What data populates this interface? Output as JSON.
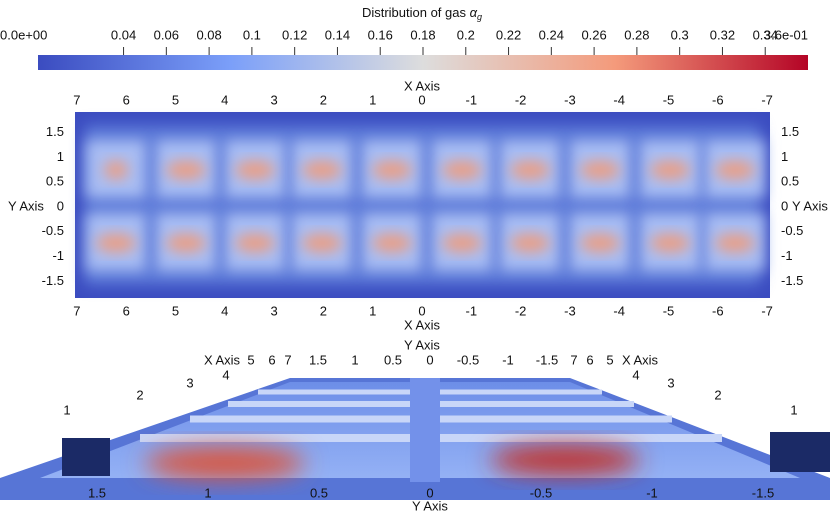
{
  "colorbar": {
    "title": "Distribution of gas",
    "symbol": "α",
    "subscript": "g",
    "range": [
      0,
      0.36
    ],
    "ticks": [
      {
        "value": 0,
        "label": "0.0e+00"
      },
      0.04,
      0.06,
      0.08,
      0.1,
      0.12,
      0.14,
      0.16,
      0.18,
      0.2,
      0.22,
      0.24,
      0.26,
      0.28,
      0.3,
      0.32,
      0.34,
      {
        "value": 0.36,
        "label": "3.6e-01"
      }
    ]
  },
  "top_view": {
    "x_axis_title": "X Axis",
    "y_axis_title": "Y Axis",
    "x_labels": [
      7,
      6,
      5,
      4,
      3,
      2,
      1,
      0,
      -1,
      -2,
      -3,
      -4,
      -5,
      -6,
      -7
    ],
    "y_labels": [
      1.5,
      1,
      0.5,
      0,
      -0.5,
      -1,
      -1.5
    ]
  },
  "perspective_view": {
    "y_axis_title": "Y Axis",
    "top_labels": [
      "X Axis",
      "5",
      "6",
      "7",
      "1.5",
      "1",
      "0.5",
      "0",
      "-0.5",
      "-1",
      "-1.5",
      "7",
      "6",
      "5",
      "X Axis"
    ],
    "side_labels": [
      "4",
      "3",
      "2",
      "1",
      "4",
      "3",
      "2",
      "1"
    ],
    "bottom_labels": [
      1.5,
      1,
      0.5,
      0,
      -0.5,
      -1,
      -1.5
    ]
  }
}
